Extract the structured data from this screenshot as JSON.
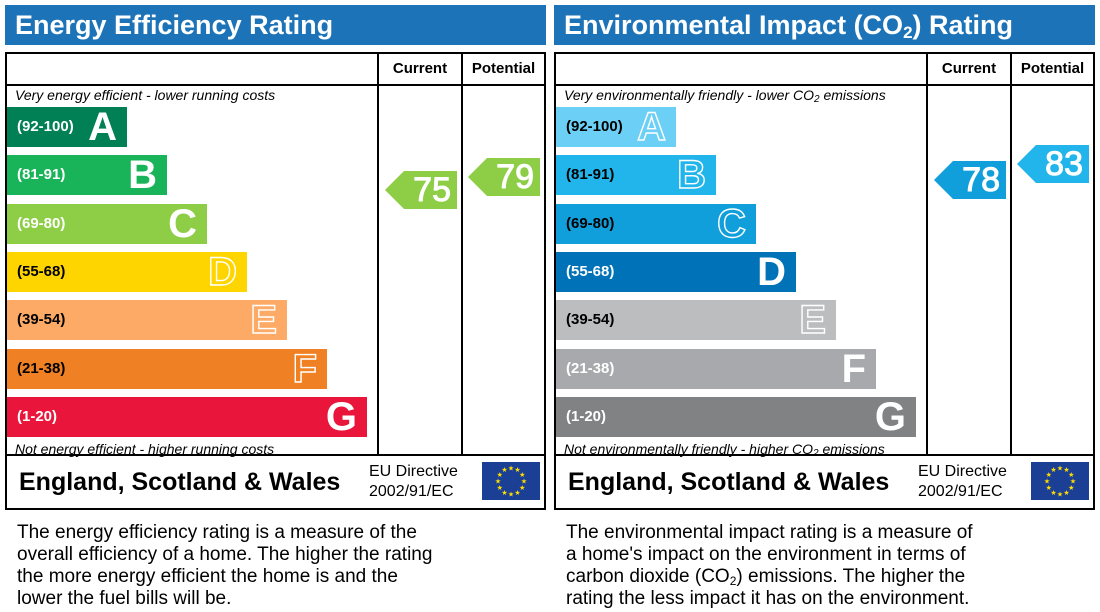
{
  "chart_data": [
    {
      "type": "bar",
      "title": "Energy Efficiency Rating",
      "columns": [
        "Current",
        "Potential"
      ],
      "note_top": "Very energy efficient - lower running costs",
      "note_bottom": "Not energy efficient - higher running costs",
      "bands": [
        {
          "range": "(92-100)",
          "letter": "A",
          "color": "#008054"
        },
        {
          "range": "(81-91)",
          "letter": "B",
          "color": "#19b459"
        },
        {
          "range": "(69-80)",
          "letter": "C",
          "color": "#8dce46"
        },
        {
          "range": "(55-68)",
          "letter": "D",
          "color": "#ffd500"
        },
        {
          "range": "(39-54)",
          "letter": "E",
          "color": "#fcaa65"
        },
        {
          "range": "(21-38)",
          "letter": "F",
          "color": "#ef8023"
        },
        {
          "range": "(1-20)",
          "letter": "G",
          "color": "#e9153b"
        }
      ],
      "current": 75,
      "potential": 79,
      "current_color": "#8dce46",
      "potential_color": "#8dce46",
      "region": "England, Scotland & Wales",
      "directive_line1": "EU Directive",
      "directive_line2": "2002/91/EC"
    },
    {
      "type": "bar",
      "title": "Environmental Impact (CO2) Rating",
      "columns": [
        "Current",
        "Potential"
      ],
      "note_top": "Very environmentally friendly - lower CO2 emissions",
      "note_bottom": "Not environmentally friendly - higher CO2 emissions",
      "bands": [
        {
          "range": "(92-100)",
          "letter": "A",
          "color": "#6ccff6"
        },
        {
          "range": "(81-91)",
          "letter": "B",
          "color": "#22b5eb"
        },
        {
          "range": "(69-80)",
          "letter": "C",
          "color": "#109fdb"
        },
        {
          "range": "(55-68)",
          "letter": "D",
          "color": "#0072b8"
        },
        {
          "range": "(39-54)",
          "letter": "E",
          "color": "#bbbdbf"
        },
        {
          "range": "(21-38)",
          "letter": "F",
          "color": "#a7a9ac"
        },
        {
          "range": "(1-20)",
          "letter": "G",
          "color": "#808284"
        }
      ],
      "current": 78,
      "potential": 83,
      "current_color": "#109fdb",
      "potential_color": "#22b5eb",
      "region": "England, Scotland & Wales",
      "directive_line1": "EU Directive",
      "directive_line2": "2002/91/EC"
    }
  ],
  "descriptions": {
    "eer": [
      "The energy efficiency rating is a measure of the",
      "overall efficiency of a home. The higher the rating",
      "the more energy efficient the home is and the",
      "lower the fuel bills will be."
    ],
    "eir": [
      "The environmental impact rating is a measure of",
      "a home's impact on the environment in terms of",
      "carbon dioxide (CO2) emissions. The higher the",
      "rating the less impact it has on the environment."
    ]
  },
  "icons": {
    "flag": "eu-flag-icon"
  }
}
